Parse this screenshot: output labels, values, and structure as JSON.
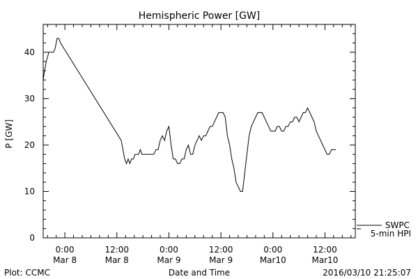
{
  "chart_data": {
    "type": "line",
    "title": "Hemispheric Power [GW]",
    "xlabel": "Date and Time",
    "ylabel": "P [GW]",
    "ylim": [
      0,
      46
    ],
    "xlim_hours": [
      -5,
      67
    ],
    "yticks": [
      0,
      10,
      20,
      30,
      40
    ],
    "xticks": [
      {
        "hour": 0,
        "line1": "0:00",
        "line2": "Mar 8"
      },
      {
        "hour": 12,
        "line1": "12:00",
        "line2": "Mar 8"
      },
      {
        "hour": 24,
        "line1": "0:00",
        "line2": "Mar 9"
      },
      {
        "hour": 36,
        "line1": "12:00",
        "line2": "Mar 9"
      },
      {
        "hour": 48,
        "line1": "0:00",
        "line2": "Mar10"
      },
      {
        "hour": 60,
        "line1": "12:00",
        "line2": "Mar10"
      }
    ],
    "legend": [
      {
        "label": "SWPC"
      },
      {
        "label": "5-min HPI"
      }
    ],
    "series": [
      {
        "values": [
          [
            -5.0,
            34
          ],
          [
            -4.7,
            36
          ],
          [
            -4.3,
            38
          ],
          [
            -3.7,
            40
          ],
          [
            -2.6,
            40
          ],
          [
            -2.2,
            41
          ],
          [
            -1.8,
            43
          ],
          [
            -1.4,
            43
          ],
          [
            -1.0,
            42
          ],
          [
            13.0,
            21
          ],
          [
            13.4,
            19
          ],
          [
            13.8,
            17
          ],
          [
            14.2,
            16
          ],
          [
            14.6,
            17
          ],
          [
            15.0,
            16
          ],
          [
            15.4,
            17
          ],
          [
            15.8,
            17
          ],
          [
            16.2,
            18
          ],
          [
            17.0,
            18
          ],
          [
            17.4,
            19
          ],
          [
            17.8,
            18
          ],
          [
            18.3,
            18
          ],
          [
            19.5,
            18
          ],
          [
            20.5,
            18
          ],
          [
            21.0,
            19
          ],
          [
            21.5,
            19
          ],
          [
            22.0,
            21
          ],
          [
            22.5,
            22
          ],
          [
            23.0,
            21
          ],
          [
            23.5,
            23
          ],
          [
            24.0,
            24
          ],
          [
            24.5,
            20
          ],
          [
            25.0,
            17
          ],
          [
            25.5,
            17
          ],
          [
            26.0,
            16
          ],
          [
            26.5,
            16
          ],
          [
            27.0,
            17
          ],
          [
            27.5,
            17
          ],
          [
            28.0,
            19
          ],
          [
            28.5,
            20
          ],
          [
            29.0,
            18
          ],
          [
            29.5,
            18
          ],
          [
            30.0,
            20
          ],
          [
            30.5,
            21
          ],
          [
            31.0,
            22
          ],
          [
            31.5,
            21
          ],
          [
            32.0,
            22
          ],
          [
            32.5,
            22
          ],
          [
            33.0,
            23
          ],
          [
            33.5,
            24
          ],
          [
            34.0,
            24
          ],
          [
            34.5,
            25
          ],
          [
            35.0,
            26
          ],
          [
            35.5,
            27
          ],
          [
            36.5,
            27
          ],
          [
            37.0,
            26
          ],
          [
            37.5,
            22
          ],
          [
            38.0,
            20
          ],
          [
            38.5,
            17
          ],
          [
            39.0,
            15
          ],
          [
            39.5,
            12
          ],
          [
            40.0,
            11
          ],
          [
            40.5,
            10
          ],
          [
            41.0,
            10
          ],
          [
            41.5,
            14
          ],
          [
            42.0,
            18
          ],
          [
            42.5,
            22
          ],
          [
            43.0,
            24
          ],
          [
            43.5,
            25
          ],
          [
            44.0,
            26
          ],
          [
            44.5,
            27
          ],
          [
            45.5,
            27
          ],
          [
            46.0,
            26
          ],
          [
            46.5,
            25
          ],
          [
            47.0,
            24
          ],
          [
            47.5,
            23
          ],
          [
            48.5,
            23
          ],
          [
            49.0,
            24
          ],
          [
            49.5,
            24
          ],
          [
            50.0,
            23
          ],
          [
            50.5,
            23
          ],
          [
            51.0,
            24
          ],
          [
            51.5,
            24
          ],
          [
            52.0,
            25
          ],
          [
            52.5,
            25
          ],
          [
            53.0,
            26
          ],
          [
            53.5,
            26
          ],
          [
            54.0,
            25
          ],
          [
            54.5,
            26
          ],
          [
            55.0,
            27
          ],
          [
            55.5,
            27
          ],
          [
            56.0,
            28
          ],
          [
            56.5,
            27
          ],
          [
            57.0,
            26
          ],
          [
            57.5,
            25
          ],
          [
            58.0,
            23
          ],
          [
            58.5,
            22
          ],
          [
            59.0,
            21
          ],
          [
            59.5,
            20
          ],
          [
            60.0,
            19
          ],
          [
            60.5,
            18
          ],
          [
            61.0,
            18
          ],
          [
            61.5,
            19
          ],
          [
            62.5,
            19
          ]
        ]
      }
    ]
  },
  "footer": {
    "left": "Plot: CCMC",
    "right": "2016/03/10 21:25:07"
  }
}
